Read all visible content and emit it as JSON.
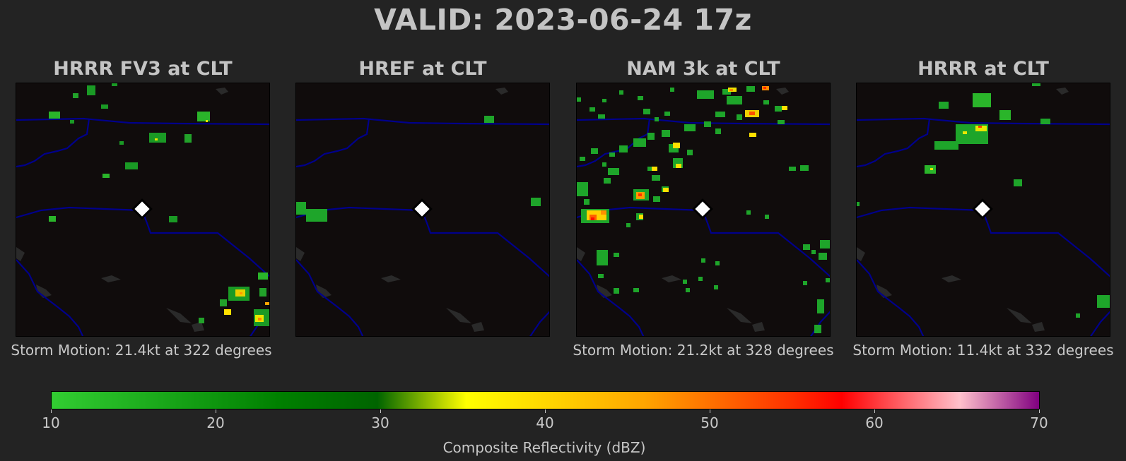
{
  "title": "VALID: 2023-06-24 17z",
  "panels": [
    {
      "title": "HRRR FV3 at CLT",
      "storm_motion": "Storm Motion: 21.4kt at 322 degrees"
    },
    {
      "title": "HREF at CLT",
      "storm_motion": ""
    },
    {
      "title": "NAM 3k at CLT",
      "storm_motion": "Storm Motion: 21.2kt at 328 degrees"
    },
    {
      "title": "HRRR at CLT",
      "storm_motion": "Storm Motion: 11.4kt at 332 degrees"
    }
  ],
  "colorbar": {
    "label": "Composite Reflectivity (dBZ)",
    "min": 10,
    "max": 70,
    "ticks": [
      "10",
      "20",
      "30",
      "40",
      "50",
      "60",
      "70"
    ]
  },
  "colors": {
    "background": "#232323",
    "map_fill": "#100c0c",
    "boundary": "#00008b",
    "lakes": "#2a2a2a",
    "station_marker": "#ffffff"
  }
}
